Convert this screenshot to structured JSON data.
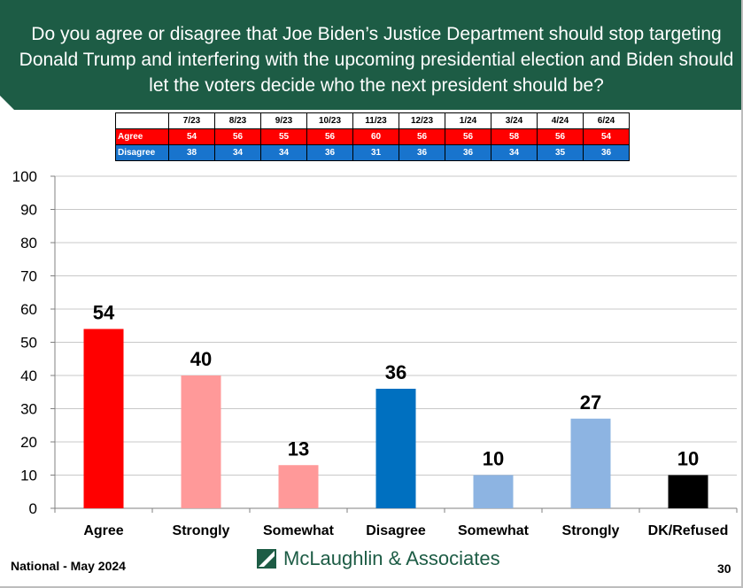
{
  "header": {
    "title": "Do you agree or disagree that Joe Biden’s Justice Department should stop targeting Donald Trump and interfering with the upcoming presidential election and Biden should let the voters decide who the next president should be?"
  },
  "trend_table": {
    "columns": [
      "7/23",
      "8/23",
      "9/23",
      "10/23",
      "11/23",
      "12/23",
      "1/24",
      "3/24",
      "4/24",
      "6/24"
    ],
    "rows": [
      {
        "label": "Agree",
        "values": [
          "54",
          "56",
          "55",
          "56",
          "60",
          "56",
          "56",
          "58",
          "56",
          "54"
        ]
      },
      {
        "label": "Disagree",
        "values": [
          "38",
          "34",
          "34",
          "36",
          "31",
          "36",
          "36",
          "34",
          "35",
          "36"
        ]
      }
    ]
  },
  "chart_data": {
    "type": "bar",
    "categories": [
      "Agree",
      "Strongly",
      "Somewhat",
      "Disagree",
      "Somewhat",
      "Strongly",
      "DK/Refused"
    ],
    "values": [
      54,
      40,
      13,
      36,
      10,
      27,
      10
    ],
    "colors": [
      "#ff0000",
      "#ff9999",
      "#ff9999",
      "#0070c0",
      "#8db4e2",
      "#8db4e2",
      "#000000"
    ],
    "ylim": [
      0,
      100
    ],
    "yticks": [
      0,
      10,
      20,
      30,
      40,
      50,
      60,
      70,
      80,
      90,
      100
    ],
    "grid": true
  },
  "footer": {
    "left": "National - May 2024",
    "logo": "McLaughlin & Associates",
    "page": "30"
  },
  "colors": {
    "header_bg": "#1d5c45",
    "agree_row": "#ff0000",
    "disagree_row": "#1874cd"
  }
}
